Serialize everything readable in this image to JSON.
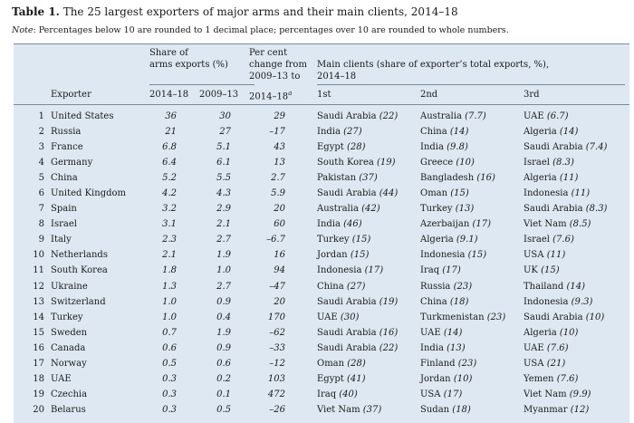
{
  "title": {
    "label": "Table 1.",
    "text": "The 25 largest exporters of major arms and their main clients, 2014–18"
  },
  "note": {
    "label": "Note",
    "text": ": Percentages below 10 are rounded to 1 decimal place; percentages over 10 are rounded to whole numbers."
  },
  "headers": {
    "exporter": "Exporter",
    "share_line1": "Share of",
    "share_line2": "arms exports (%)",
    "period_a": "2014–18",
    "period_b": "2009–13",
    "change_line1": "Per cent",
    "change_line2": "change from",
    "change_line3": "2009–13 to",
    "change_line4": "2014–18",
    "change_sup": "a",
    "clients_line1": "Main clients (share of exporter’s total exports, %),",
    "clients_line2": "2014–18",
    "first": "1st",
    "second": "2nd",
    "third": "3rd"
  },
  "rows": [
    {
      "num": "1",
      "exporter": "United States",
      "share_a": "36",
      "share_b": "30",
      "change": "29",
      "c1": "Saudi Arabia",
      "p1": "(22)",
      "c2": "Australia",
      "p2": "(7.7)",
      "c3": "UAE",
      "p3": "(6.7)"
    },
    {
      "num": "2",
      "exporter": "Russia",
      "share_a": "21",
      "share_b": "27",
      "change": "–17",
      "c1": "India",
      "p1": "(27)",
      "c2": "China",
      "p2": "(14)",
      "c3": "Algeria",
      "p3": "(14)"
    },
    {
      "num": "3",
      "exporter": "France",
      "share_a": "6.8",
      "share_b": "5.1",
      "change": "43",
      "c1": "Egypt",
      "p1": "(28)",
      "c2": "India",
      "p2": "(9.8)",
      "c3": "Saudi Arabia",
      "p3": "(7.4)"
    },
    {
      "num": "4",
      "exporter": "Germany",
      "share_a": "6.4",
      "share_b": "6.1",
      "change": "13",
      "c1": "South Korea",
      "p1": "(19)",
      "c2": "Greece",
      "p2": "(10)",
      "c3": "Israel",
      "p3": "(8.3)"
    },
    {
      "num": "5",
      "exporter": "China",
      "share_a": "5.2",
      "share_b": "5.5",
      "change": "2.7",
      "c1": "Pakistan",
      "p1": "(37)",
      "c2": "Bangladesh",
      "p2": "(16)",
      "c3": "Algeria",
      "p3": "(11)"
    },
    {
      "num": "6",
      "exporter": "United Kingdom",
      "share_a": "4.2",
      "share_b": "4.3",
      "change": "5.9",
      "c1": "Saudi Arabia",
      "p1": "(44)",
      "c2": "Oman",
      "p2": "(15)",
      "c3": "Indonesia",
      "p3": "(11)"
    },
    {
      "num": "7",
      "exporter": "Spain",
      "share_a": "3.2",
      "share_b": "2.9",
      "change": "20",
      "c1": "Australia",
      "p1": "(42)",
      "c2": "Turkey",
      "p2": "(13)",
      "c3": "Saudi Arabia",
      "p3": "(8.3)"
    },
    {
      "num": "8",
      "exporter": "Israel",
      "share_a": "3.1",
      "share_b": "2.1",
      "change": "60",
      "c1": "India",
      "p1": "(46)",
      "c2": "Azerbaijan",
      "p2": "(17)",
      "c3": "Viet Nam",
      "p3": "(8.5)"
    },
    {
      "num": "9",
      "exporter": "Italy",
      "share_a": "2.3",
      "share_b": "2.7",
      "change": "–6.7",
      "c1": "Turkey",
      "p1": "(15)",
      "c2": "Algeria",
      "p2": "(9.1)",
      "c3": "Israel",
      "p3": "(7.6)"
    },
    {
      "num": "10",
      "exporter": "Netherlands",
      "share_a": "2.1",
      "share_b": "1.9",
      "change": "16",
      "c1": "Jordan",
      "p1": "(15)",
      "c2": "Indonesia",
      "p2": "(15)",
      "c3": "USA",
      "p3": "(11)"
    },
    {
      "num": "11",
      "exporter": "South Korea",
      "share_a": "1.8",
      "share_b": "1.0",
      "change": "94",
      "c1": "Indonesia",
      "p1": "(17)",
      "c2": "Iraq",
      "p2": "(17)",
      "c3": "UK",
      "p3": "(15)"
    },
    {
      "num": "12",
      "exporter": "Ukraine",
      "share_a": "1.3",
      "share_b": "2.7",
      "change": "–47",
      "c1": "China",
      "p1": "(27)",
      "c2": "Russia",
      "p2": "(23)",
      "c3": "Thailand",
      "p3": "(14)"
    },
    {
      "num": "13",
      "exporter": "Switzerland",
      "share_a": "1.0",
      "share_b": "0.9",
      "change": "20",
      "c1": "Saudi Arabia",
      "p1": "(19)",
      "c2": "China",
      "p2": "(18)",
      "c3": "Indonesia",
      "p3": "(9.3)"
    },
    {
      "num": "14",
      "exporter": "Turkey",
      "share_a": "1.0",
      "share_b": "0.4",
      "change": "170",
      "c1": "UAE",
      "p1": "(30)",
      "c2": "Turkmenistan",
      "p2": "(23)",
      "c3": "Saudi Arabia",
      "p3": "(10)"
    },
    {
      "num": "15",
      "exporter": "Sweden",
      "share_a": "0.7",
      "share_b": "1.9",
      "change": "–62",
      "c1": "Saudi Arabia",
      "p1": "(16)",
      "c2": "UAE",
      "p2": "(14)",
      "c3": "Algeria",
      "p3": "(10)"
    },
    {
      "num": "16",
      "exporter": "Canada",
      "share_a": "0.6",
      "share_b": "0.9",
      "change": "–33",
      "c1": "Saudi Arabia",
      "p1": "(22)",
      "c2": "India",
      "p2": "(13)",
      "c3": "UAE",
      "p3": "(7.6)"
    },
    {
      "num": "17",
      "exporter": "Norway",
      "share_a": "0.5",
      "share_b": "0.6",
      "change": "–12",
      "c1": "Oman",
      "p1": "(28)",
      "c2": "Finland",
      "p2": "(23)",
      "c3": "USA",
      "p3": "(21)"
    },
    {
      "num": "18",
      "exporter": "UAE",
      "share_a": "0.3",
      "share_b": "0.2",
      "change": "103",
      "c1": "Egypt",
      "p1": "(41)",
      "c2": "Jordan",
      "p2": "(10)",
      "c3": "Yemen",
      "p3": "(7.6)"
    },
    {
      "num": "19",
      "exporter": "Czechia",
      "share_a": "0.3",
      "share_b": "0.1",
      "change": "472",
      "c1": "Iraq",
      "p1": "(40)",
      "c2": "USA",
      "p2": "(17)",
      "c3": "Viet Nam",
      "p3": "(9.9)"
    },
    {
      "num": "20",
      "exporter": "Belarus",
      "share_a": "0.3",
      "share_b": "0.5",
      "change": "–26",
      "c1": "Viet Nam",
      "p1": "(37)",
      "c2": "Sudan",
      "p2": "(18)",
      "c3": "Myanmar",
      "p3": "(12)"
    }
  ]
}
